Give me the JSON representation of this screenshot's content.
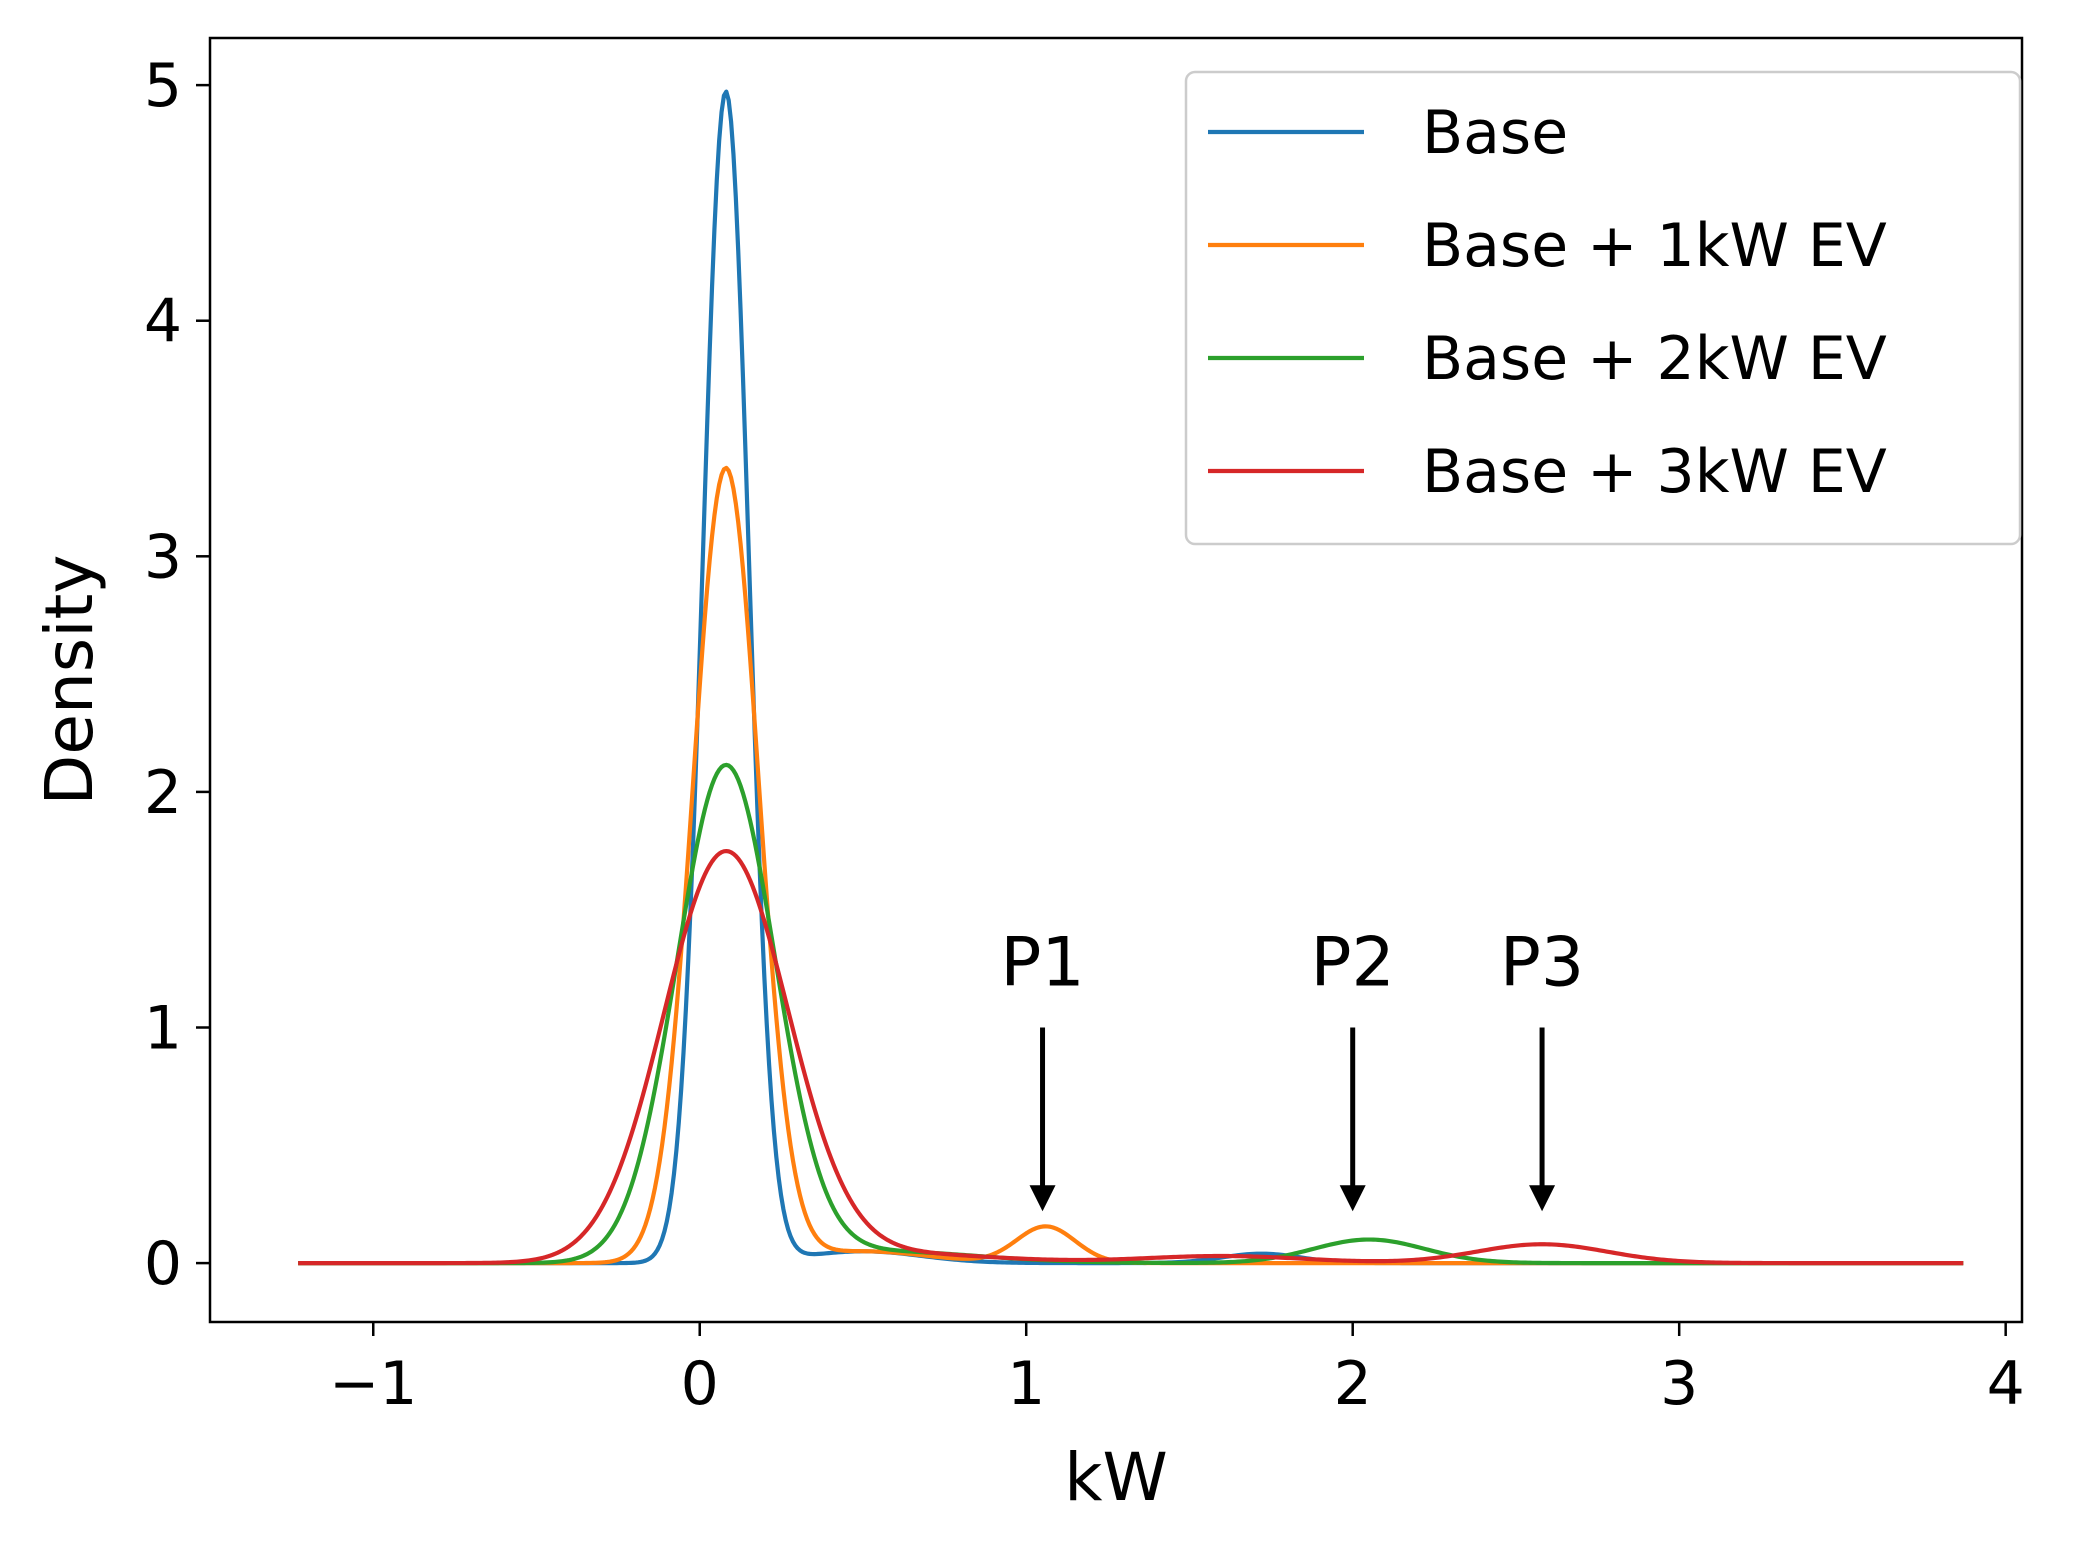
{
  "chart_data": {
    "type": "line",
    "title": "",
    "xlabel": "kW",
    "ylabel": "Density",
    "xlim": [
      -1.5,
      4.05
    ],
    "ylim": [
      -0.25,
      5.2
    ],
    "xticks": [
      {
        "value": -1,
        "label": "−1"
      },
      {
        "value": 0,
        "label": "0"
      },
      {
        "value": 1,
        "label": "1"
      },
      {
        "value": 2,
        "label": "2"
      },
      {
        "value": 3,
        "label": "3"
      },
      {
        "value": 4,
        "label": "4"
      }
    ],
    "yticks": [
      {
        "value": 0,
        "label": "0"
      },
      {
        "value": 1,
        "label": "1"
      },
      {
        "value": 2,
        "label": "2"
      },
      {
        "value": 3,
        "label": "3"
      },
      {
        "value": 4,
        "label": "4"
      },
      {
        "value": 5,
        "label": "5"
      }
    ],
    "grid": false,
    "legend_position": "top-right",
    "x_range": [
      -1.23,
      3.87
    ],
    "series": [
      {
        "name": "Base",
        "color": "#1f77b4",
        "components": [
          {
            "mu": 0.08,
            "sigma": 0.07,
            "amp": 4.97
          },
          {
            "mu": 0.5,
            "sigma": 0.18,
            "amp": 0.05
          },
          {
            "mu": 1.72,
            "sigma": 0.12,
            "amp": 0.04
          }
        ]
      },
      {
        "name": "Base + 1kW EV",
        "color": "#ff7f0e",
        "components": [
          {
            "mu": 0.08,
            "sigma": 0.1,
            "amp": 3.37
          },
          {
            "mu": 0.5,
            "sigma": 0.2,
            "amp": 0.05
          },
          {
            "mu": 1.06,
            "sigma": 0.09,
            "amp": 0.155
          }
        ]
      },
      {
        "name": "Base + 2kW EV",
        "color": "#2ca02c",
        "components": [
          {
            "mu": 0.08,
            "sigma": 0.15,
            "amp": 2.1
          },
          {
            "mu": 0.55,
            "sigma": 0.3,
            "amp": 0.05
          },
          {
            "mu": 2.05,
            "sigma": 0.17,
            "amp": 0.1
          }
        ]
      },
      {
        "name": "Base + 3kW EV",
        "color": "#d62728",
        "components": [
          {
            "mu": 0.08,
            "sigma": 0.19,
            "amp": 1.74
          },
          {
            "mu": 0.6,
            "sigma": 0.3,
            "amp": 0.04
          },
          {
            "mu": 1.6,
            "sigma": 0.25,
            "amp": 0.03
          },
          {
            "mu": 2.58,
            "sigma": 0.2,
            "amp": 0.08
          }
        ]
      }
    ],
    "annotations": [
      {
        "text": "P1",
        "x": 1.05,
        "arrow_from_y": 1.0,
        "arrow_to_y": 0.22
      },
      {
        "text": "P2",
        "x": 2.0,
        "arrow_from_y": 1.0,
        "arrow_to_y": 0.22
      },
      {
        "text": "P3",
        "x": 2.58,
        "arrow_from_y": 1.0,
        "arrow_to_y": 0.22
      }
    ]
  }
}
